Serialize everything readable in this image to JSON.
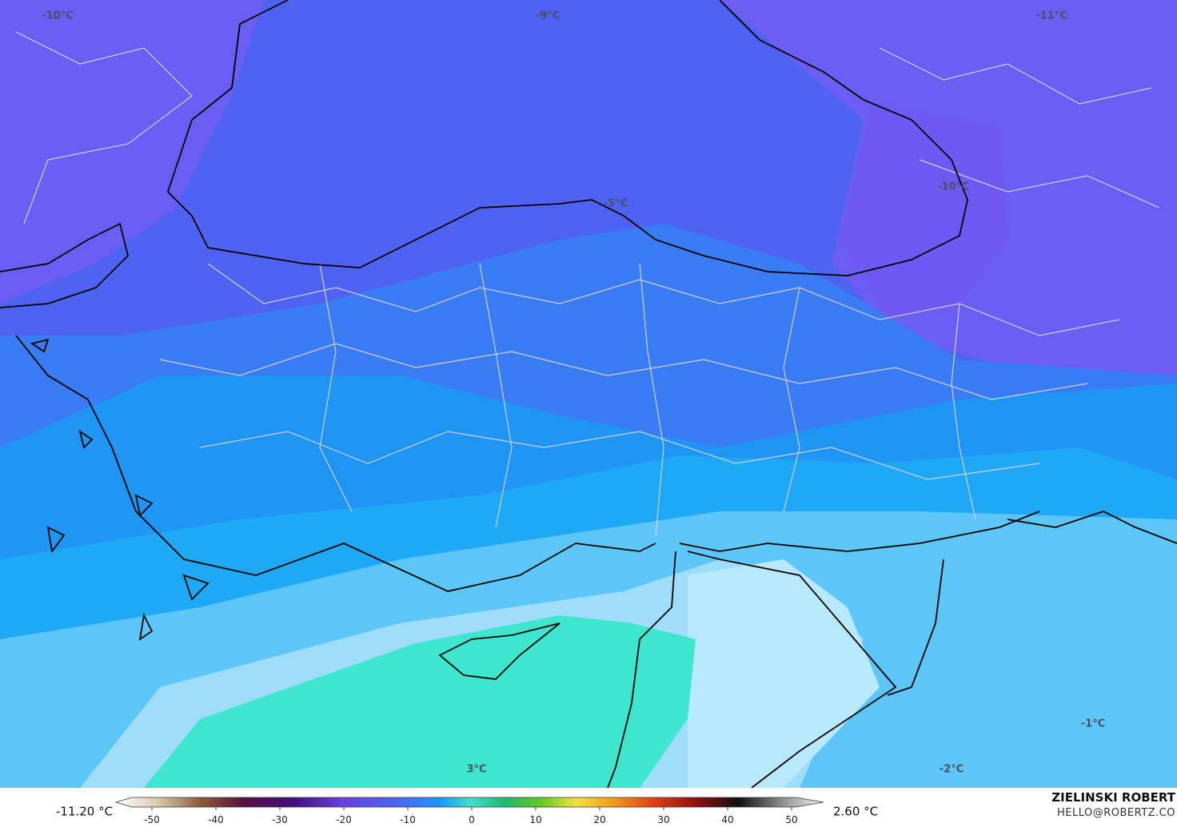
{
  "map_labels": [
    {
      "text": "-10°C"
    },
    {
      "text": "-9°C"
    },
    {
      "text": "-11°C"
    },
    {
      "text": "-5°C"
    },
    {
      "text": "-10°C"
    },
    {
      "text": "3°C"
    },
    {
      "text": "-1°C"
    },
    {
      "text": "-2°C"
    }
  ],
  "colorbar": {
    "min_label": "-11.20 °C",
    "max_label": "2.60 °C",
    "lim": [
      -55,
      55
    ],
    "ticks": [
      -50,
      -40,
      -30,
      -20,
      -10,
      0,
      10,
      20,
      30,
      40,
      50
    ]
  },
  "credits": {
    "name": "ZIELINSKI ROBERT",
    "email": "HELLO@ROBERTZ.CO"
  }
}
